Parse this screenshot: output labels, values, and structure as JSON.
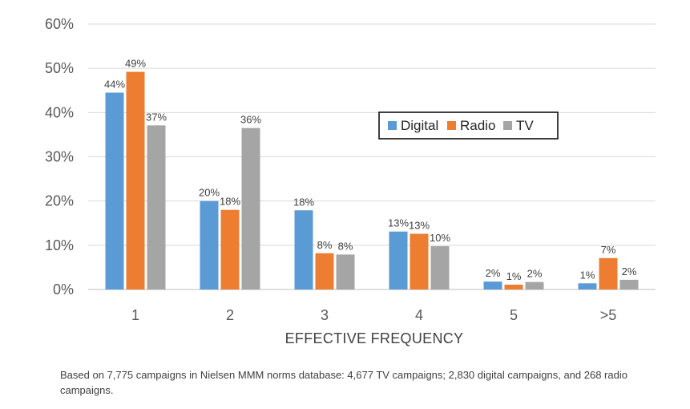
{
  "chart_data": {
    "type": "bar",
    "categories": [
      "1",
      "2",
      "3",
      "4",
      "5",
      ">5"
    ],
    "series": [
      {
        "name": "Digital",
        "color": "#5B9BD5",
        "values": [
          44,
          20,
          18,
          13,
          2,
          1
        ]
      },
      {
        "name": "Radio",
        "color": "#ED7D31",
        "values": [
          49,
          18,
          8,
          13,
          1,
          7
        ]
      },
      {
        "name": "TV",
        "color": "#A5A5A5",
        "values": [
          37,
          36,
          8,
          10,
          2,
          2
        ]
      }
    ],
    "plotted_values": [
      [
        44.5,
        20,
        17.9,
        13.1,
        1.8,
        1.4
      ],
      [
        49.2,
        18,
        8.2,
        12.6,
        1.1,
        7.1
      ],
      [
        37.1,
        36.5,
        7.9,
        9.8,
        1.7,
        2.2
      ]
    ],
    "data_labels": [
      [
        "44%",
        "20%",
        "18%",
        "13%",
        "2%",
        "1%"
      ],
      [
        "49%",
        "18%",
        "8%",
        "13%",
        "1%",
        "7%"
      ],
      [
        "37%",
        "36%",
        "8%",
        "10%",
        "2%",
        "2%"
      ]
    ],
    "xlabel": "EFFECTIVE FREQUENCY",
    "ylabel": "",
    "ylim": [
      0,
      60
    ],
    "yticks": [
      0,
      10,
      20,
      30,
      40,
      50,
      60
    ],
    "ytick_labels": [
      "0%",
      "10%",
      "20%",
      "30%",
      "40%",
      "50%",
      "60%"
    ],
    "grid": true,
    "legend_position": "right-center"
  },
  "footnote": "Based on 7,775 campaigns in Nielsen MMM norms database: 4,677 TV campaigns; 2,830 digital campaigns, and 268 radio campaigns."
}
